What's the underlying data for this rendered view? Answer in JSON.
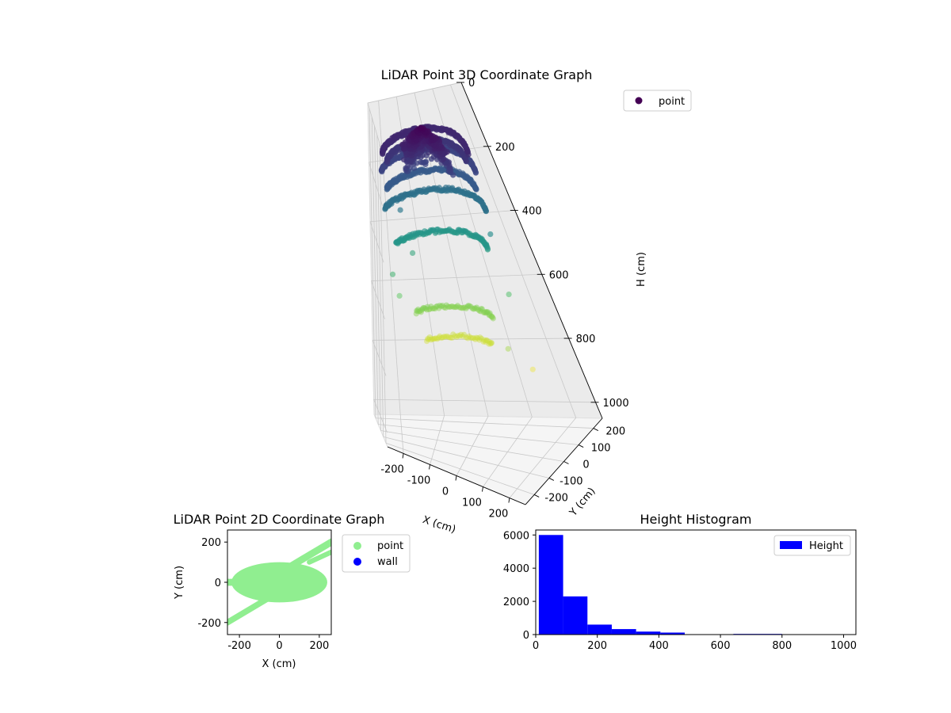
{
  "figure": {
    "background": "#ffffff"
  },
  "chart_data": [
    {
      "type": "scatter3d",
      "title": "LiDAR Point 3D Coordinate Graph",
      "xlabel": "X (cm)",
      "ylabel": "Y (cm)",
      "zlabel": "H (cm)",
      "x_ticks": [
        -200,
        -100,
        0,
        100,
        200
      ],
      "y_ticks": [
        -200,
        -100,
        0,
        100,
        200
      ],
      "z_ticks": [
        0,
        200,
        400,
        600,
        800,
        1000
      ],
      "xlim": [
        -260,
        260
      ],
      "ylim": [
        -260,
        260
      ],
      "zlim": [
        0,
        1050
      ],
      "z_inverted": true,
      "colormap": "viridis",
      "grid": true,
      "legend": {
        "entries": [
          {
            "label": "point",
            "color": "#440154"
          }
        ],
        "placement": "upper-right"
      },
      "series": [
        {
          "name": "point",
          "groups": [
            {
              "shape": "ring",
              "radius": 220,
              "h": 100,
              "theta": [
                0.15,
                3.05
              ],
              "count": 190
            },
            {
              "shape": "ring",
              "radius": 200,
              "h": 130,
              "theta": [
                0.2,
                3.0
              ],
              "count": 170
            },
            {
              "shape": "ring",
              "radius": 230,
              "h": 170,
              "theta": [
                0.25,
                2.95
              ],
              "count": 170
            },
            {
              "shape": "ring",
              "radius": 210,
              "h": 230,
              "theta": [
                0.3,
                2.9
              ],
              "count": 160
            },
            {
              "shape": "ring",
              "radius": 225,
              "h": 300,
              "theta": [
                0.3,
                2.85
              ],
              "count": 150
            },
            {
              "shape": "ring",
              "radius": 190,
              "h": 420,
              "theta": [
                0.4,
                2.8
              ],
              "count": 120
            },
            {
              "shape": "ring",
              "radius": 150,
              "h": 650,
              "theta": [
                0.6,
                2.6
              ],
              "count": 70
            },
            {
              "shape": "ring",
              "radius": 130,
              "h": 740,
              "theta": [
                0.7,
                2.5
              ],
              "count": 50
            },
            {
              "shape": "dome",
              "radius": 120,
              "h_top": 0,
              "h_bottom": 180,
              "count": 420
            },
            {
              "shape": "scatter",
              "points": [
                [
                  -200,
                  50,
                  520
                ],
                [
                  -180,
                  80,
                  600
                ],
                [
                  210,
                  60,
                  560
                ],
                [
                  230,
                  30,
                  780
                ],
                [
                  190,
                  -30,
                  690
                ],
                [
                  -150,
                  110,
                  320
                ],
                [
                  160,
                  120,
                  450
                ],
                [
                  -120,
                  130,
                  470
                ],
                [
                  200,
                  80,
                  380
                ]
              ]
            }
          ]
        }
      ]
    },
    {
      "type": "scatter",
      "title": "LiDAR Point 2D Coordinate Graph",
      "xlabel": "X (cm)",
      "ylabel": "Y (cm)",
      "x_ticks": [
        -200,
        0,
        200
      ],
      "y_ticks": [
        200,
        0,
        -200
      ],
      "xlim": [
        -260,
        260
      ],
      "ylim": [
        -260,
        260
      ],
      "legend": {
        "placement": "outside-right",
        "entries": [
          {
            "label": "point",
            "color": "#90ee90"
          },
          {
            "label": "wall",
            "color": "#0000ff"
          }
        ]
      },
      "series": [
        {
          "name": "point",
          "color": "#90ee90",
          "regions": [
            {
              "shape": "ellipse",
              "cx": 0,
              "cy": 0,
              "rx": 240,
              "ry": 100
            },
            {
              "shape": "band",
              "from": [
                -260,
                -200
              ],
              "to": [
                -40,
                -70
              ],
              "width": 30
            },
            {
              "shape": "band",
              "from": [
                -260,
                0
              ],
              "to": [
                -200,
                0
              ],
              "width": 35
            },
            {
              "shape": "band",
              "from": [
                40,
                70
              ],
              "to": [
                260,
                200
              ],
              "width": 35
            },
            {
              "shape": "band",
              "from": [
                150,
                100
              ],
              "to": [
                260,
                150
              ],
              "width": 25
            }
          ]
        },
        {
          "name": "wall",
          "color": "#0000ff",
          "regions": []
        }
      ]
    },
    {
      "type": "bar",
      "title": "Height Histogram",
      "x_ticks": [
        0,
        200,
        400,
        600,
        800,
        1000
      ],
      "y_ticks": [
        0,
        2000,
        4000,
        6000
      ],
      "xlim": [
        0,
        1040
      ],
      "ylim": [
        0,
        6300
      ],
      "bar_color": "#0000ff",
      "legend": {
        "entries": [
          {
            "label": "Height",
            "color": "#0000ff"
          }
        ],
        "placement": "upper-right"
      },
      "bins": [
        {
          "x0": 10,
          "x1": 89,
          "count": 6000
        },
        {
          "x0": 89,
          "x1": 168,
          "count": 2300
        },
        {
          "x0": 168,
          "x1": 247,
          "count": 600
        },
        {
          "x0": 247,
          "x1": 326,
          "count": 330
        },
        {
          "x0": 326,
          "x1": 405,
          "count": 180
        },
        {
          "x0": 405,
          "x1": 484,
          "count": 120
        },
        {
          "x0": 484,
          "x1": 563,
          "count": 10
        },
        {
          "x0": 563,
          "x1": 642,
          "count": 10
        },
        {
          "x0": 642,
          "x1": 721,
          "count": 40
        },
        {
          "x0": 721,
          "x1": 800,
          "count": 40
        },
        {
          "x0": 800,
          "x1": 879,
          "count": 0
        },
        {
          "x0": 879,
          "x1": 958,
          "count": 0
        },
        {
          "x0": 958,
          "x1": 1037,
          "count": 0
        }
      ]
    }
  ]
}
